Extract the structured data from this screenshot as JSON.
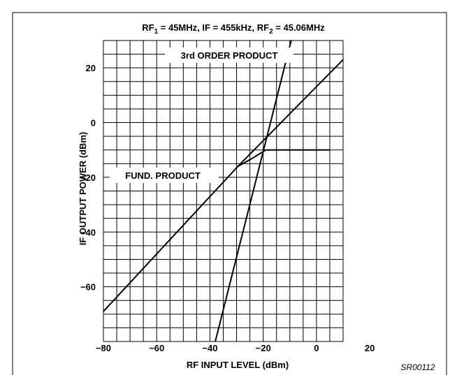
{
  "chart_data": {
    "type": "line",
    "title_parts": [
      "RF",
      "1",
      " = 45MHz, IF = 455kHz, RF",
      "2",
      " = 45.06MHz"
    ],
    "xlabel": "RF INPUT LEVEL (dBm)",
    "ylabel": "IF OUTPUT POWER (dBm)",
    "xlim": [
      -80,
      10
    ],
    "ylim": [
      -80,
      30
    ],
    "x_ticks": [
      -80,
      -60,
      -40,
      -20,
      0,
      20
    ],
    "x_tick_labels": [
      "−80",
      "−60",
      "−40",
      "−20",
      "0",
      "20"
    ],
    "y_ticks": [
      20,
      0,
      -20,
      -40,
      -60
    ],
    "y_tick_labels": [
      "20",
      "0",
      "−20",
      "−40",
      "−60"
    ],
    "grid": true,
    "series": [
      {
        "name": "FUND. PRODUCT",
        "points": [
          [
            -80,
            -69
          ],
          [
            -29.5,
            -16
          ],
          [
            -24,
            -13
          ],
          [
            -19,
            -10
          ],
          [
            5,
            -10
          ]
        ]
      },
      {
        "name": "",
        "points": [
          [
            -29.5,
            -16
          ],
          [
            10,
            23
          ]
        ]
      },
      {
        "name": "3rd ORDER PRODUCT",
        "points": [
          [
            -38,
            -80
          ],
          [
            -9.5,
            30
          ]
        ]
      }
    ],
    "annotations": [
      "3rd ORDER PRODUCT",
      "FUND. PRODUCT"
    ],
    "figure_ref": "SR00112"
  }
}
